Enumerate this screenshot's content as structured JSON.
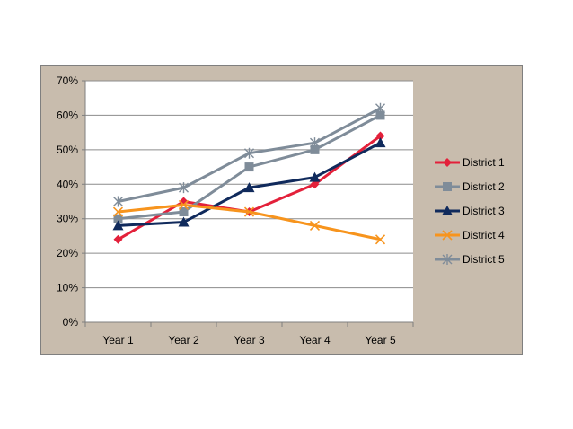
{
  "chart_data": {
    "type": "line",
    "title": "",
    "xlabel": "",
    "ylabel": "",
    "categories": [
      "Year 1",
      "Year 2",
      "Year 3",
      "Year 4",
      "Year 5"
    ],
    "y_ticks": [
      "0%",
      "10%",
      "20%",
      "30%",
      "40%",
      "50%",
      "60%",
      "70%"
    ],
    "ylim": [
      0,
      70
    ],
    "grid": true,
    "legend_position": "right",
    "series": [
      {
        "name": "District 1",
        "values": [
          24,
          35,
          32,
          40,
          54
        ],
        "color": "#e3203a",
        "marker": "diamond"
      },
      {
        "name": "District 2",
        "values": [
          30,
          32,
          45,
          50,
          60
        ],
        "color": "#7f8c99",
        "marker": "square"
      },
      {
        "name": "District 3",
        "values": [
          28,
          29,
          39,
          42,
          52
        ],
        "color": "#102a5c",
        "marker": "triangle"
      },
      {
        "name": "District 4",
        "values": [
          32,
          34,
          32,
          28,
          24
        ],
        "color": "#f7941d",
        "marker": "x"
      },
      {
        "name": "District 5",
        "values": [
          35,
          39,
          49,
          52,
          62
        ],
        "color": "#7f8c99",
        "marker": "star"
      }
    ]
  }
}
